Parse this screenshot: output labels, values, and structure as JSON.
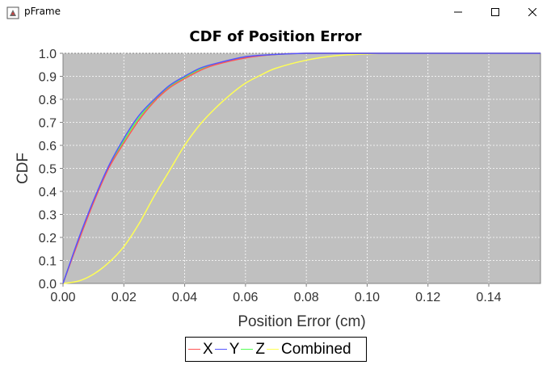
{
  "window": {
    "title": "pFrame"
  },
  "chart_data": {
    "type": "line",
    "title": "CDF of Position Error",
    "xlabel": "Position Error (cm)",
    "ylabel": "CDF",
    "xlim": [
      0,
      0.157
    ],
    "ylim": [
      0,
      1.0
    ],
    "xticks": [
      "0.00",
      "0.02",
      "0.04",
      "0.06",
      "0.08",
      "0.10",
      "0.12",
      "0.14"
    ],
    "yticks": [
      "0.0",
      "0.1",
      "0.2",
      "0.3",
      "0.4",
      "0.5",
      "0.6",
      "0.7",
      "0.8",
      "0.9",
      "1.0"
    ],
    "grid": true,
    "legend_position": "bottom",
    "background_color": "#c0c0c0",
    "series": [
      {
        "name": "X",
        "color": "#ff5555",
        "x": [
          0,
          0.005,
          0.01,
          0.015,
          0.02,
          0.025,
          0.03,
          0.035,
          0.04,
          0.045,
          0.05,
          0.06,
          0.07,
          0.08,
          0.09,
          0.157
        ],
        "y": [
          0,
          0.18,
          0.35,
          0.5,
          0.61,
          0.71,
          0.79,
          0.85,
          0.89,
          0.925,
          0.95,
          0.98,
          0.995,
          1.0,
          1.0,
          1.0
        ]
      },
      {
        "name": "Y",
        "color": "#5555ff",
        "x": [
          0,
          0.005,
          0.01,
          0.015,
          0.02,
          0.025,
          0.03,
          0.035,
          0.04,
          0.045,
          0.05,
          0.06,
          0.07,
          0.08,
          0.09,
          0.157
        ],
        "y": [
          0,
          0.19,
          0.36,
          0.51,
          0.63,
          0.73,
          0.8,
          0.86,
          0.9,
          0.935,
          0.955,
          0.985,
          0.995,
          1.0,
          1.0,
          1.0
        ]
      },
      {
        "name": "Z",
        "color": "#55ff55",
        "x": [
          0,
          0.005,
          0.01,
          0.015,
          0.02,
          0.025,
          0.03,
          0.035,
          0.04,
          0.045,
          0.05,
          0.06,
          0.07,
          0.08,
          0.09,
          0.157
        ],
        "y": [
          0,
          0.185,
          0.355,
          0.505,
          0.62,
          0.72,
          0.795,
          0.855,
          0.895,
          0.93,
          0.952,
          0.982,
          0.995,
          1.0,
          1.0,
          1.0
        ]
      },
      {
        "name": "Combined",
        "color": "#ffff55",
        "x": [
          0,
          0.005,
          0.01,
          0.015,
          0.02,
          0.025,
          0.03,
          0.035,
          0.04,
          0.045,
          0.05,
          0.055,
          0.06,
          0.065,
          0.07,
          0.08,
          0.09,
          0.1,
          0.11,
          0.157
        ],
        "y": [
          0,
          0.01,
          0.04,
          0.09,
          0.16,
          0.26,
          0.38,
          0.49,
          0.6,
          0.69,
          0.76,
          0.82,
          0.87,
          0.905,
          0.935,
          0.97,
          0.99,
          0.997,
          1.0,
          1.0
        ]
      }
    ]
  }
}
